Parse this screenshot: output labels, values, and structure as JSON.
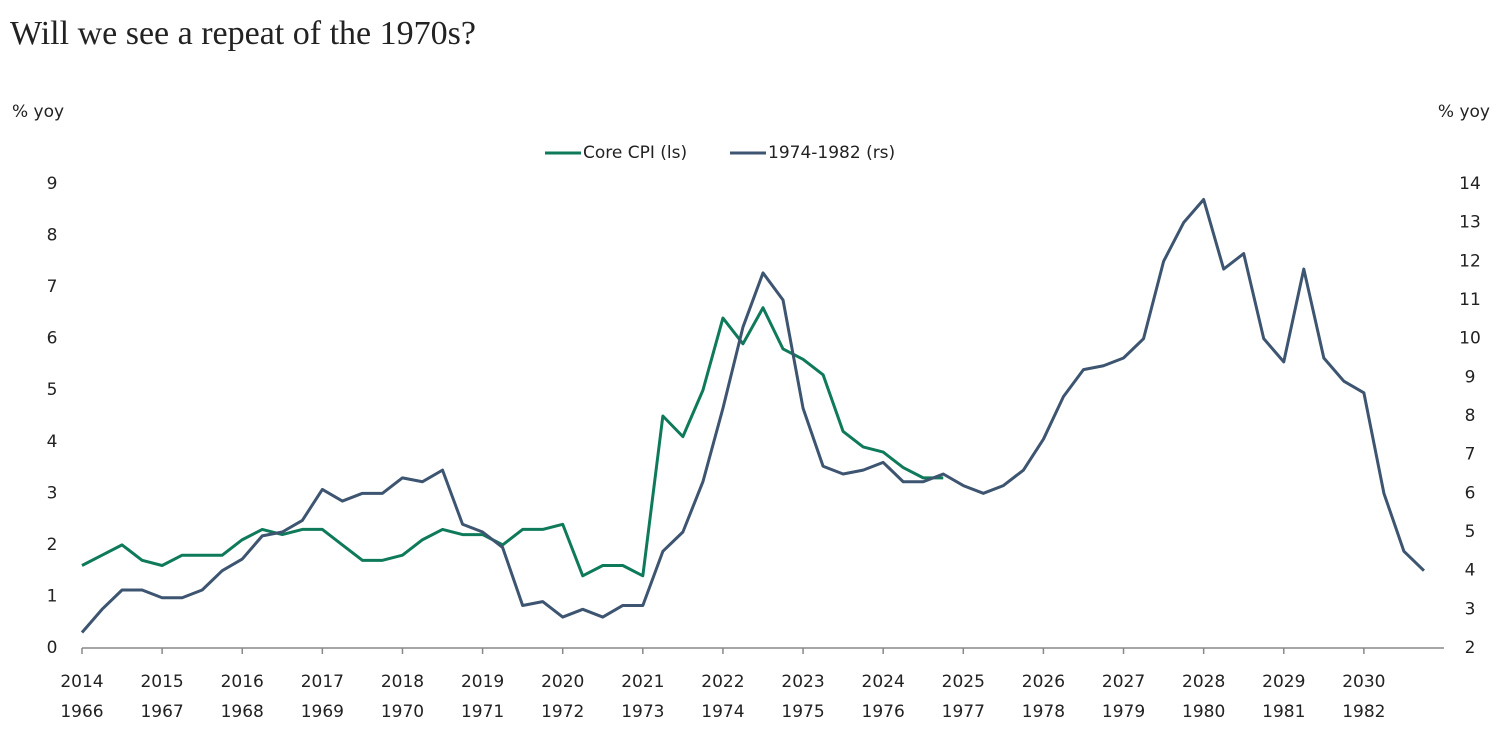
{
  "chart_data": {
    "type": "line",
    "title": "Will we see a repeat of the 1970s?",
    "ylabel": "% yoy",
    "y2label": "% yoy",
    "x": [
      2014,
      2014.25,
      2014.5,
      2014.75,
      2015,
      2015.25,
      2015.5,
      2015.75,
      2016,
      2016.25,
      2016.5,
      2016.75,
      2017,
      2017.25,
      2017.5,
      2017.75,
      2018,
      2018.25,
      2018.5,
      2018.75,
      2019,
      2019.25,
      2019.5,
      2019.75,
      2020,
      2020.25,
      2020.5,
      2020.75,
      2021,
      2021.25,
      2021.5,
      2021.75,
      2022,
      2022.25,
      2022.5,
      2022.75,
      2023,
      2023.25,
      2023.5,
      2023.75,
      2024,
      2024.25,
      2024.5,
      2024.75,
      2025,
      2025.25,
      2025.5,
      2025.75,
      2026,
      2026.25,
      2026.5,
      2026.75,
      2027,
      2027.25,
      2027.5,
      2027.75,
      2028,
      2028.25,
      2028.5,
      2028.75,
      2029,
      2029.25,
      2029.5,
      2029.75,
      2030,
      2030.25,
      2030.5,
      2030.75
    ],
    "xlim": [
      2014,
      2031
    ],
    "xticks": [
      2014,
      2015,
      2016,
      2017,
      2018,
      2019,
      2020,
      2021,
      2022,
      2023,
      2024,
      2025,
      2026,
      2027,
      2028,
      2029,
      2030
    ],
    "xticks2": [
      "1966",
      "1967",
      "1968",
      "1969",
      "1970",
      "1971",
      "1972",
      "1973",
      "1974",
      "1975",
      "1976",
      "1977",
      "1978",
      "1979",
      "1980",
      "1981",
      "1982"
    ],
    "ylim": [
      0,
      9
    ],
    "yticks": [
      0,
      1,
      2,
      3,
      4,
      5,
      6,
      7,
      8,
      9
    ],
    "y2lim": [
      2,
      14
    ],
    "y2ticks": [
      2,
      3,
      4,
      5,
      6,
      7,
      8,
      9,
      10,
      11,
      12,
      13,
      14
    ],
    "legend": "top",
    "series": [
      {
        "name": "Core CPI (ls)",
        "color": "#0f7a5a",
        "values": [
          1.6,
          1.8,
          2.0,
          1.7,
          1.6,
          1.8,
          1.8,
          1.8,
          2.1,
          2.3,
          2.2,
          2.3,
          2.3,
          2.0,
          1.7,
          1.7,
          1.8,
          2.1,
          2.3,
          2.2,
          2.2,
          2.0,
          2.3,
          2.3,
          2.4,
          1.4,
          1.6,
          1.6,
          1.4,
          4.5,
          4.1,
          5.0,
          6.4,
          5.9,
          6.6,
          5.8,
          5.6,
          5.3,
          4.2,
          3.9,
          3.8,
          3.5,
          3.3,
          3.3,
          null,
          null,
          null,
          null,
          null,
          null,
          null,
          null,
          null,
          null,
          null,
          null,
          null,
          null,
          null,
          null,
          null,
          null,
          null,
          null,
          null,
          null,
          null,
          null
        ]
      },
      {
        "name": "1974-1982 (rs)",
        "color": "#3d5570",
        "axis": "y2",
        "values": [
          2.4,
          3.0,
          3.5,
          3.5,
          3.3,
          3.3,
          3.5,
          4.0,
          4.3,
          4.9,
          5.0,
          5.3,
          6.1,
          5.8,
          6.0,
          6.0,
          6.4,
          6.3,
          6.6,
          5.2,
          5.0,
          4.6,
          3.1,
          3.2,
          2.8,
          3.0,
          2.8,
          3.1,
          3.1,
          4.5,
          5.0,
          6.3,
          8.2,
          10.3,
          11.7,
          11.0,
          8.2,
          6.7,
          6.5,
          6.6,
          6.8,
          6.3,
          6.3,
          6.5,
          6.2,
          6.0,
          6.2,
          6.6,
          7.4,
          8.5,
          9.2,
          9.3,
          9.5,
          10.0,
          12.0,
          13.0,
          13.6,
          11.8,
          12.2,
          10.0,
          9.4,
          11.8,
          9.5,
          8.9,
          8.6,
          6.0,
          4.5,
          4.0
        ]
      }
    ]
  }
}
